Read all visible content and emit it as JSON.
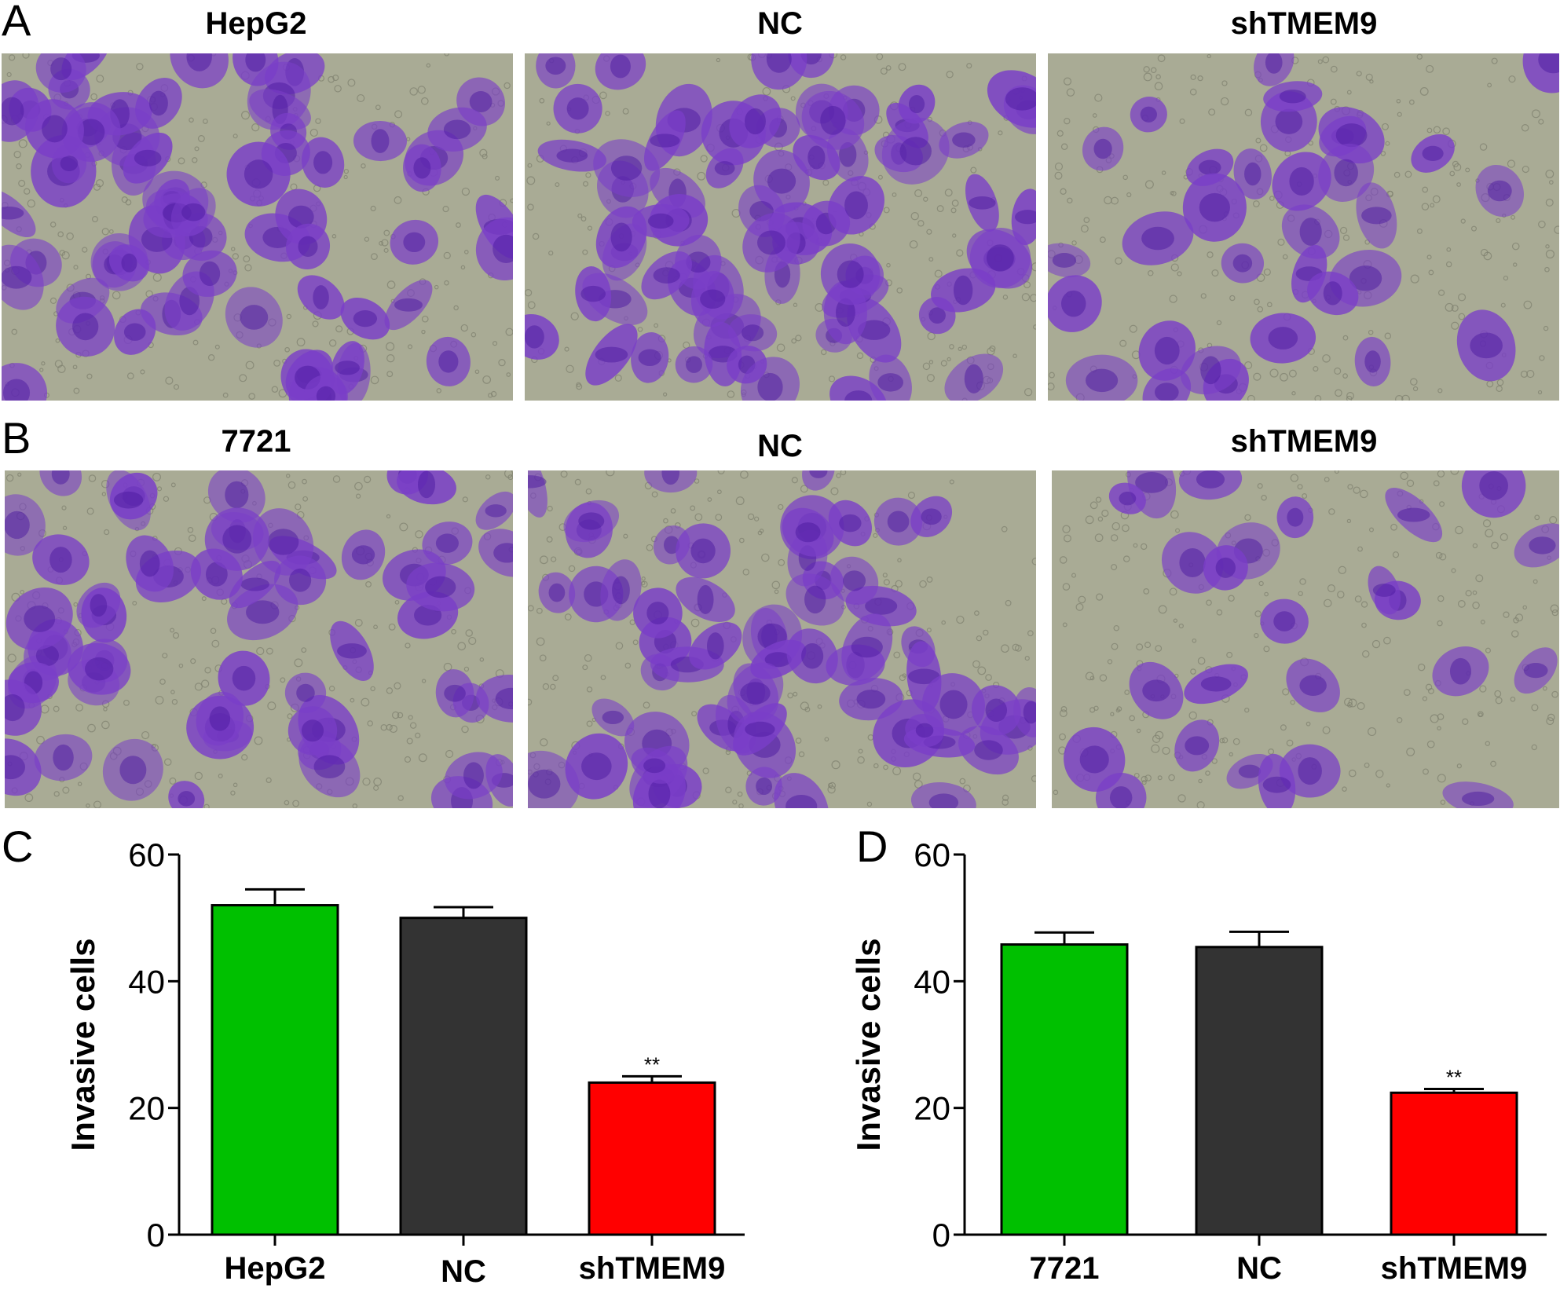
{
  "figure": {
    "panel_A": {
      "letter": "A",
      "images": [
        {
          "title": "HepG2",
          "density": 0.95
        },
        {
          "title": "NC",
          "density": 1.0
        },
        {
          "title": "shTMEM9",
          "density": 0.45
        }
      ]
    },
    "panel_B": {
      "letter": "B",
      "images": [
        {
          "title": "7721",
          "density": 0.8
        },
        {
          "title": "NC",
          "density": 0.85
        },
        {
          "title": "shTMEM9",
          "density": 0.35
        }
      ]
    },
    "panel_C": {
      "letter": "C"
    },
    "panel_D": {
      "letter": "D"
    }
  },
  "colors": {
    "green": "#00c000",
    "dark": "#333333",
    "red": "#ff0000",
    "stain": "#7a3ec8",
    "stain_dark": "#4b1aa0",
    "background_field": "#a9ab95"
  },
  "chart_data": [
    {
      "type": "bar",
      "panel": "C",
      "ylabel": "Invasive cells",
      "xlabel": "",
      "ylim": [
        0,
        60
      ],
      "yticks": [
        0,
        20,
        40,
        60
      ],
      "categories": [
        "HepG2",
        "NC",
        "shTMEM9"
      ],
      "values": [
        52,
        50,
        24
      ],
      "errors": [
        2.5,
        1.7,
        1.0
      ],
      "bar_colors": [
        "#00c000",
        "#333333",
        "#ff0000"
      ],
      "annotations": [
        "",
        "",
        "**"
      ]
    },
    {
      "type": "bar",
      "panel": "D",
      "ylabel": "Invasive cells",
      "xlabel": "",
      "ylim": [
        0,
        60
      ],
      "yticks": [
        0,
        20,
        40,
        60
      ],
      "categories": [
        "7721",
        "NC",
        "shTMEM9"
      ],
      "values": [
        45.8,
        45.4,
        22.4
      ],
      "errors": [
        1.9,
        2.4,
        0.6
      ],
      "bar_colors": [
        "#00c000",
        "#333333",
        "#ff0000"
      ],
      "annotations": [
        "",
        "",
        "**"
      ]
    }
  ]
}
